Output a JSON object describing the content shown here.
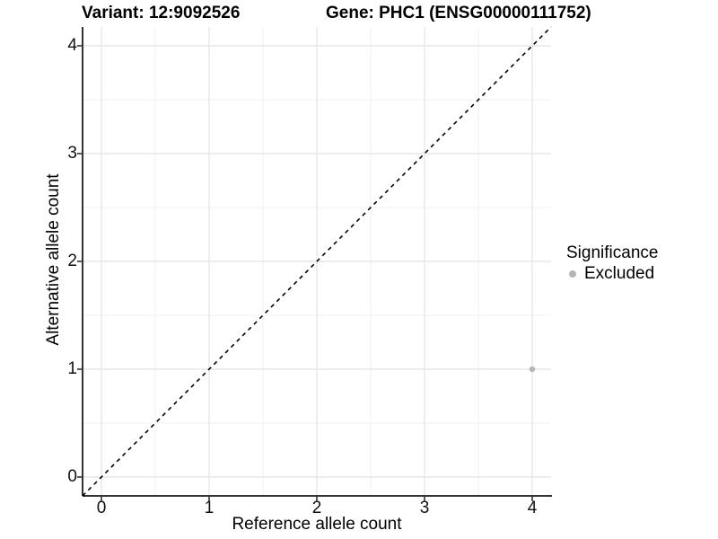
{
  "titles": {
    "variant": "Variant: 12:9092526",
    "gene": "Gene: PHC1 (ENSG00000111752)"
  },
  "colors": {
    "background": "#ffffff",
    "grid_major": "#e2e2e2",
    "grid_minor": "#f2f2f2",
    "axis_line": "#333333",
    "tick_mark": "#333333",
    "diagonal_line": "#000000",
    "excluded_point": "#b5b5b5",
    "text": "#000000"
  },
  "chart_data": {
    "type": "scatter",
    "title_left": "Variant: 12:9092526",
    "title_right": "Gene: PHC1 (ENSG00000111752)",
    "xlabel": "Reference allele count",
    "ylabel": "Alternative allele count",
    "xticks": [
      0,
      1,
      2,
      3,
      4
    ],
    "yticks": [
      0,
      1,
      2,
      3,
      4
    ],
    "xlim": [
      -0.175,
      4.175
    ],
    "ylim": [
      -0.175,
      4.175
    ],
    "grid": "major and minor gridlines on, white panel background",
    "axis_lines": "left and bottom only",
    "reference_line": {
      "type": "identity y=x",
      "style": "dashed",
      "color": "#000000"
    },
    "series": [
      {
        "name": "Excluded",
        "color": "#b5b5b5",
        "marker": "circle",
        "points": [
          {
            "x": 4,
            "y": 1
          }
        ]
      }
    ],
    "legend": {
      "title": "Significance",
      "position": "right",
      "items": [
        {
          "label": "Excluded",
          "color": "#b5b5b5"
        }
      ]
    }
  }
}
